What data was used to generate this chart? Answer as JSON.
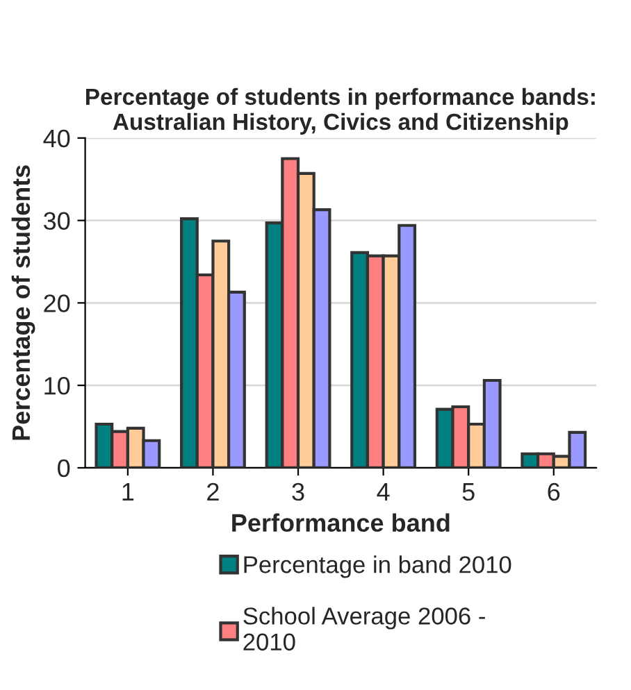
{
  "chart_data": {
    "type": "bar",
    "title": "Percentage of students in performance bands: Australian History, Civics and Citizenship",
    "xlabel": "Performance band",
    "ylabel": "Percentage of students",
    "categories": [
      "1",
      "2",
      "3",
      "4",
      "5",
      "6"
    ],
    "series": [
      {
        "name": "Percentage in band 2010",
        "color": "#008080",
        "values": [
          5.3,
          30.2,
          29.7,
          26.1,
          7.1,
          1.7
        ]
      },
      {
        "name": "School Average 2006 - 2010",
        "color": "#ff8080",
        "values": [
          4.4,
          23.4,
          37.5,
          25.7,
          7.4,
          1.7
        ]
      },
      {
        "color": "#ffcc99",
        "values": [
          4.8,
          27.5,
          35.7,
          25.7,
          5.3,
          1.4
        ]
      },
      {
        "color": "#9999ff",
        "values": [
          3.3,
          21.3,
          31.3,
          29.4,
          10.6,
          4.3
        ]
      }
    ],
    "ylim": [
      0,
      40
    ],
    "yticks": [
      0,
      10,
      20,
      30,
      40
    ],
    "grid": "y",
    "legend": "bottom"
  }
}
